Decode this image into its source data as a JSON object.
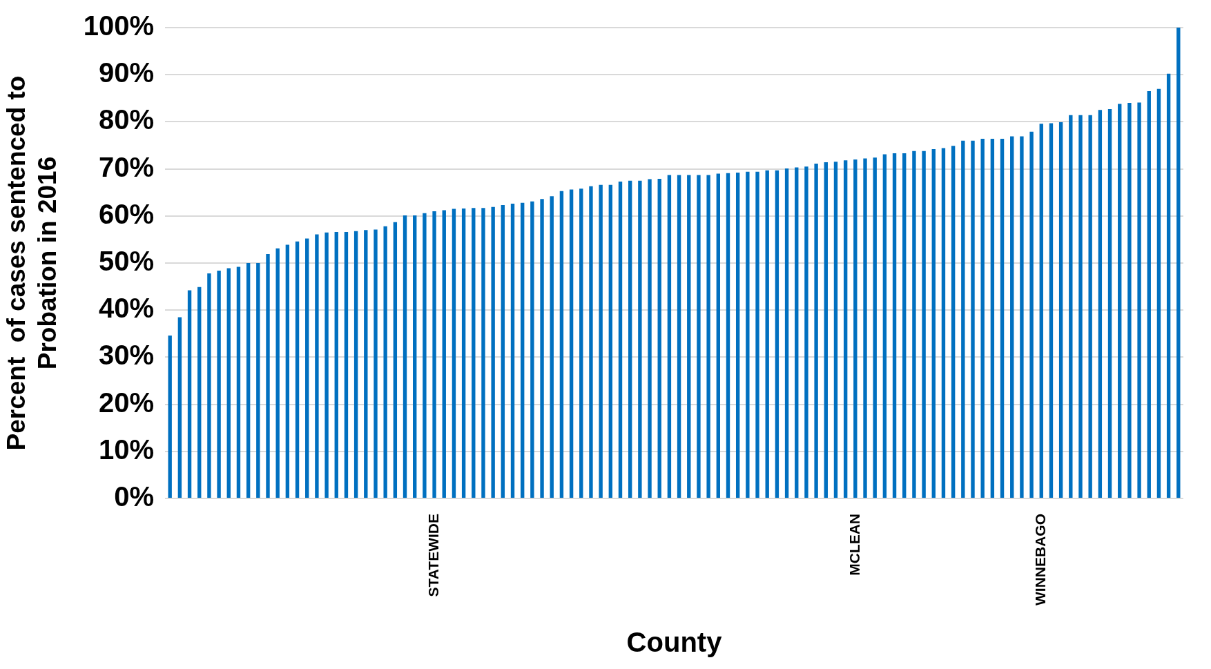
{
  "chart_data": {
    "type": "bar",
    "xlabel": "County",
    "ylabel": [
      "Percent  of cases sentenced to",
      "Probation in 2016"
    ],
    "categories": [
      null,
      null,
      null,
      null,
      null,
      null,
      null,
      null,
      null,
      null,
      null,
      null,
      null,
      null,
      null,
      null,
      null,
      null,
      null,
      null,
      null,
      null,
      null,
      null,
      null,
      null,
      null,
      "STATEWIDE",
      null,
      null,
      null,
      null,
      null,
      null,
      null,
      null,
      null,
      null,
      null,
      null,
      null,
      null,
      null,
      null,
      null,
      null,
      null,
      null,
      null,
      null,
      null,
      null,
      null,
      null,
      null,
      null,
      null,
      null,
      null,
      null,
      null,
      null,
      null,
      null,
      null,
      null,
      null,
      null,
      null,
      null,
      "MCLEAN",
      null,
      null,
      null,
      null,
      null,
      null,
      null,
      null,
      null,
      null,
      null,
      null,
      null,
      null,
      null,
      null,
      null,
      null,
      "WINNEBAGO",
      null,
      null,
      null,
      null,
      null,
      null,
      null,
      null,
      null,
      null,
      null,
      null,
      null,
      null
    ],
    "values": [
      34.6,
      38.5,
      44.2,
      44.9,
      47.8,
      48.4,
      48.9,
      49.2,
      50.0,
      50.0,
      51.9,
      53.1,
      53.9,
      54.6,
      55.2,
      56.1,
      56.5,
      56.6,
      56.6,
      56.8,
      57.0,
      57.1,
      57.8,
      58.7,
      60.1,
      60.1,
      60.6,
      61.0,
      61.2,
      61.5,
      61.6,
      61.7,
      61.7,
      61.9,
      62.3,
      62.6,
      62.8,
      63.1,
      63.6,
      64.2,
      65.3,
      65.6,
      65.8,
      66.3,
      66.6,
      66.6,
      67.3,
      67.5,
      67.5,
      67.8,
      67.9,
      68.7,
      68.7,
      68.7,
      68.7,
      68.7,
      69.0,
      69.1,
      69.2,
      69.4,
      69.4,
      69.7,
      69.7,
      70.1,
      70.3,
      70.5,
      71.1,
      71.4,
      71.5,
      71.8,
      72.0,
      72.2,
      72.4,
      73.1,
      73.3,
      73.3,
      73.8,
      73.8,
      74.2,
      74.4,
      74.9,
      76.0,
      76.0,
      76.4,
      76.4,
      76.4,
      76.9,
      76.9,
      77.9,
      79.6,
      79.7,
      79.9,
      81.4,
      81.4,
      81.4,
      82.5,
      82.7,
      83.8,
      84.0,
      84.1,
      86.5,
      87.0,
      90.2,
      100
    ],
    "color": "#0070c0",
    "ylim": [
      0,
      100
    ],
    "yticks": [
      {
        "value": 0,
        "label": "0%"
      },
      {
        "value": 10,
        "label": "10%"
      },
      {
        "value": 20,
        "label": "20%"
      },
      {
        "value": 30,
        "label": "30%"
      },
      {
        "value": 40,
        "label": "40%"
      },
      {
        "value": 50,
        "label": "50%"
      },
      {
        "value": 60,
        "label": "60%"
      },
      {
        "value": 70,
        "label": "70%"
      },
      {
        "value": 80,
        "label": "80%"
      },
      {
        "value": 90,
        "label": "90%"
      },
      {
        "value": 100,
        "label": "100%"
      }
    ],
    "grid": "y"
  }
}
